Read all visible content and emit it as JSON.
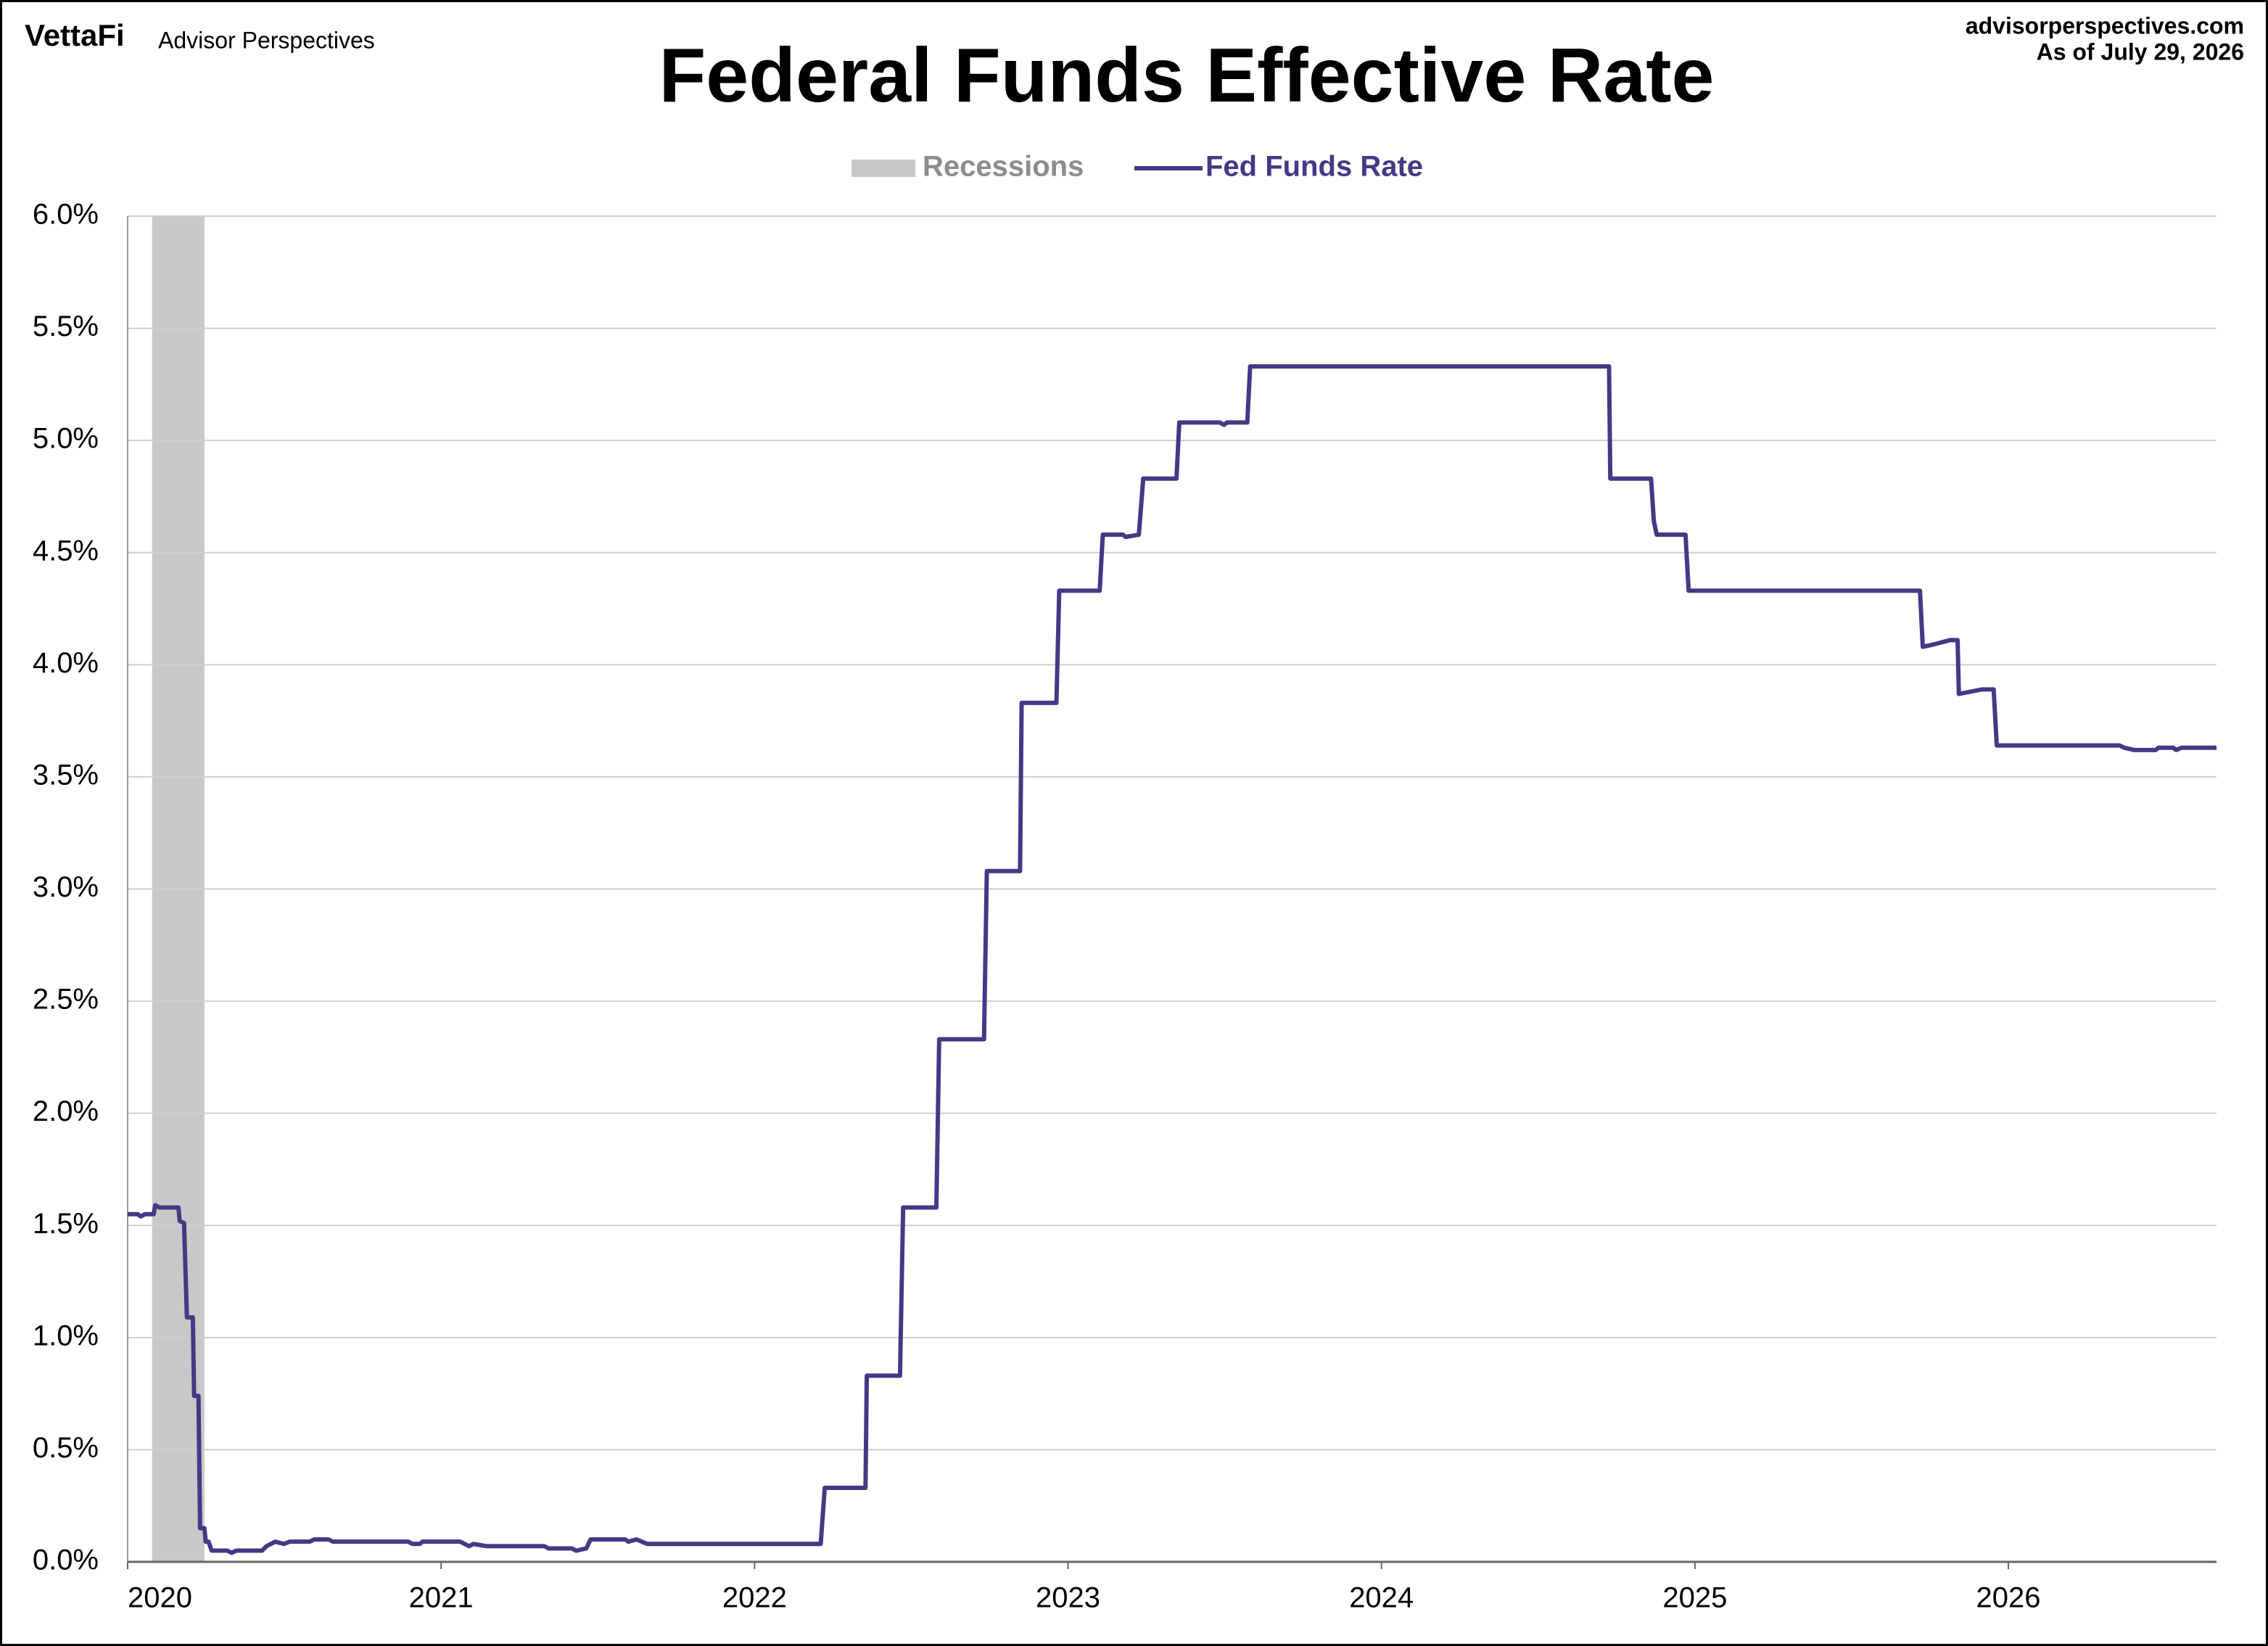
{
  "header": {
    "brand": "VettaFi",
    "publisher": "Advisor Perspectives",
    "site": "advisorperspectives.com",
    "as_of": "As of July 29, 2026"
  },
  "chart_data": {
    "type": "line",
    "title": "Federal Funds Effective Rate",
    "recessions": {
      "name": "Recessions",
      "color": "#c8c8c8",
      "periods": [
        [
          2020.078,
          2020.245
        ]
      ]
    },
    "series": [
      {
        "name": "Fed Funds Rate",
        "color": "#463885",
        "x": [
          2020,
          2020.032,
          2020.042,
          2020.055,
          2020.083,
          2020.088,
          2020.102,
          2020.162,
          2020.166,
          2020.18,
          2020.189,
          2020.208,
          2020.212,
          2020.226,
          2020.231,
          2020.245,
          2020.249,
          2020.258,
          2020.268,
          2020.318,
          2020.332,
          2020.346,
          2020.429,
          2020.443,
          2020.471,
          2020.498,
          2020.517,
          2020.581,
          2020.595,
          2020.641,
          2020.655,
          2020.895,
          2020.909,
          2020.932,
          2020.941,
          2021.061,
          2021.089,
          2021.103,
          2021.145,
          2021.329,
          2021.343,
          2021.417,
          2021.431,
          2021.463,
          2021.477,
          2021.588,
          2021.597,
          2021.624,
          2021.657,
          2022.211,
          2022.224,
          2022.354,
          2022.358,
          2022.464,
          2022.474,
          2022.58,
          2022.589,
          2022.732,
          2022.741,
          2022.847,
          2022.852,
          2022.963,
          2022.972,
          2023.101,
          2023.111,
          2023.175,
          2023.184,
          2023.226,
          2023.24,
          2023.346,
          2023.355,
          2023.484,
          2023.498,
          2023.507,
          2023.572,
          2023.581,
          2024.726,
          2024.73,
          2024.86,
          2024.869,
          2024.878,
          2024.97,
          2024.98,
          2025.718,
          2025.727,
          2025.76,
          2025.787,
          2025.815,
          2025.838,
          2025.842,
          2025.88,
          2025.916,
          2025.953,
          2025.963,
          2026.355,
          2026.369,
          2026.401,
          2026.47,
          2026.479,
          2026.526,
          2026.535,
          2026.553,
          2026.664
        ],
        "values": [
          1.55,
          1.55,
          1.54,
          1.55,
          1.55,
          1.59,
          1.58,
          1.58,
          1.52,
          1.51,
          1.09,
          1.09,
          0.74,
          0.74,
          0.15,
          0.15,
          0.09,
          0.09,
          0.05,
          0.05,
          0.04,
          0.05,
          0.05,
          0.07,
          0.09,
          0.08,
          0.09,
          0.09,
          0.1,
          0.1,
          0.09,
          0.09,
          0.08,
          0.08,
          0.09,
          0.09,
          0.07,
          0.08,
          0.07,
          0.07,
          0.06,
          0.06,
          0.05,
          0.06,
          0.1,
          0.1,
          0.09,
          0.1,
          0.08,
          0.08,
          0.33,
          0.33,
          0.83,
          0.83,
          1.58,
          1.58,
          2.33,
          2.33,
          3.08,
          3.08,
          3.83,
          3.83,
          4.33,
          4.33,
          4.58,
          4.58,
          4.57,
          4.58,
          4.83,
          4.83,
          5.08,
          5.08,
          5.07,
          5.08,
          5.08,
          5.33,
          5.33,
          4.83,
          4.83,
          4.64,
          4.58,
          4.58,
          4.33,
          4.33,
          4.08,
          4.09,
          4.1,
          4.11,
          4.11,
          3.87,
          3.88,
          3.89,
          3.89,
          3.64,
          3.64,
          3.63,
          3.62,
          3.62,
          3.63,
          3.63,
          3.62,
          3.63,
          3.63
        ]
      }
    ],
    "xlim": [
      2020,
      2026.664
    ],
    "xticks": [
      2020,
      2021,
      2022,
      2023,
      2024,
      2025,
      2026
    ],
    "ylim": [
      0,
      6
    ],
    "yticks": [
      {
        "value": 0,
        "label": "0.0%"
      },
      {
        "value": 0.5,
        "label": "0.5%"
      },
      {
        "value": 1,
        "label": "1.0%"
      },
      {
        "value": 1.5,
        "label": "1.5%"
      },
      {
        "value": 2,
        "label": "2.0%"
      },
      {
        "value": 2.5,
        "label": "2.5%"
      },
      {
        "value": 3,
        "label": "3.0%"
      },
      {
        "value": 3.5,
        "label": "3.5%"
      },
      {
        "value": 4,
        "label": "4.0%"
      },
      {
        "value": 4.5,
        "label": "4.5%"
      },
      {
        "value": 5,
        "label": "5.0%"
      },
      {
        "value": 5.5,
        "label": "5.5%"
      },
      {
        "value": 6,
        "label": "6.0%"
      }
    ],
    "grid": true,
    "legend": "top"
  }
}
